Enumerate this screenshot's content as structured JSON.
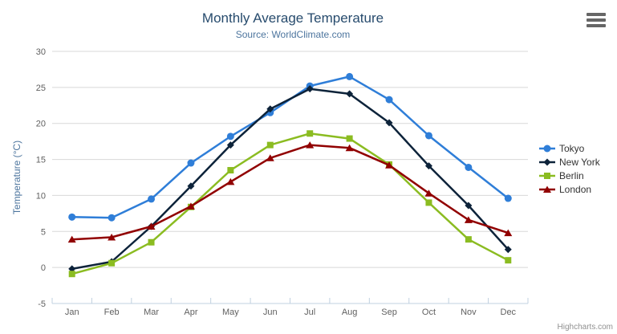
{
  "chart_data": {
    "type": "line",
    "title": "Monthly Average Temperature",
    "subtitle": "Source: WorldClimate.com",
    "xlabel": "",
    "ylabel": "Temperature (°C)",
    "ylim": [
      -5,
      30
    ],
    "ytick_step": 5,
    "grid": true,
    "legend_position": "right",
    "categories": [
      "Jan",
      "Feb",
      "Mar",
      "Apr",
      "May",
      "Jun",
      "Jul",
      "Aug",
      "Sep",
      "Oct",
      "Nov",
      "Dec"
    ],
    "series": [
      {
        "name": "Tokyo",
        "color": "#2f7ed8",
        "marker": "circle",
        "values": [
          7.0,
          6.9,
          9.5,
          14.5,
          18.2,
          21.5,
          25.2,
          26.5,
          23.3,
          18.3,
          13.9,
          9.6
        ]
      },
      {
        "name": "New York",
        "color": "#0d233a",
        "marker": "diamond",
        "values": [
          -0.2,
          0.8,
          5.7,
          11.3,
          17.0,
          22.0,
          24.8,
          24.1,
          20.1,
          14.1,
          8.6,
          2.5
        ]
      },
      {
        "name": "Berlin",
        "color": "#8bbc21",
        "marker": "square",
        "values": [
          -0.9,
          0.6,
          3.5,
          8.4,
          13.5,
          17.0,
          18.6,
          17.9,
          14.3,
          9.0,
          3.9,
          1.0
        ]
      },
      {
        "name": "London",
        "color": "#910000",
        "marker": "triangle",
        "values": [
          3.9,
          4.2,
          5.7,
          8.5,
          11.9,
          15.2,
          17.0,
          16.6,
          14.2,
          10.3,
          6.6,
          4.8
        ]
      }
    ]
  },
  "credits": "Highcharts.com",
  "theme": {
    "title_color": "#274b6d",
    "subtitle_color": "#4d759e",
    "axis_label_color": "#606060",
    "axis_title_color": "#4d759e",
    "grid_color": "#d8d8d8",
    "axis_line_color": "#c0d0e0",
    "legend_label_color": "#333333",
    "credits_color": "#909090",
    "menu_icon_color": "#666666",
    "background": "#ffffff"
  }
}
